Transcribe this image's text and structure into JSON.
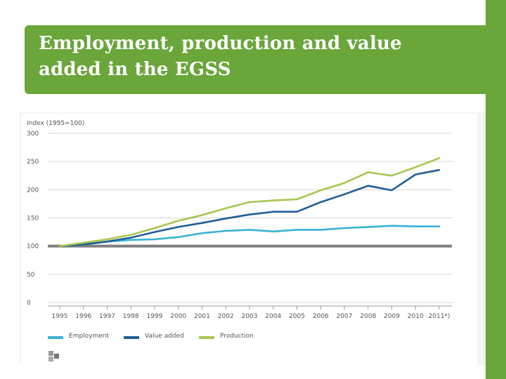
{
  "slide": {
    "title_line1": "Employment, production and value",
    "title_line2": "added in the EGSS",
    "accent_color": "#6aa63a"
  },
  "chart_data": {
    "type": "line",
    "title": "Employment, production and value added in the EGSS",
    "ylabel": "Index (1995=100)",
    "xlabel": "",
    "categories": [
      "1995",
      "1996",
      "1997",
      "1998",
      "1999",
      "2000",
      "2001",
      "2002",
      "2003",
      "2004",
      "2005",
      "2006",
      "2007",
      "2008",
      "2009",
      "2010",
      "2011*)"
    ],
    "y_ticks": [
      0,
      50,
      100,
      150,
      200,
      250,
      300
    ],
    "ylim": [
      0,
      300
    ],
    "baseline": 100,
    "grid": true,
    "legend_position": "bottom-left",
    "series": [
      {
        "name": "Employment",
        "color": "#37b2d4",
        "values": [
          100,
          103,
          108,
          111,
          112,
          116,
          123,
          127,
          129,
          126,
          129,
          129,
          132,
          134,
          136,
          135,
          135
        ]
      },
      {
        "name": "Value added",
        "color": "#1f5e96",
        "values": [
          100,
          103,
          108,
          115,
          125,
          134,
          141,
          149,
          156,
          161,
          161,
          178,
          192,
          207,
          199,
          227,
          235
        ]
      },
      {
        "name": "Production",
        "color": "#a7c64f",
        "values": [
          100,
          106,
          112,
          120,
          132,
          145,
          155,
          167,
          178,
          181,
          183,
          199,
          212,
          231,
          225,
          240,
          256
        ]
      }
    ]
  }
}
